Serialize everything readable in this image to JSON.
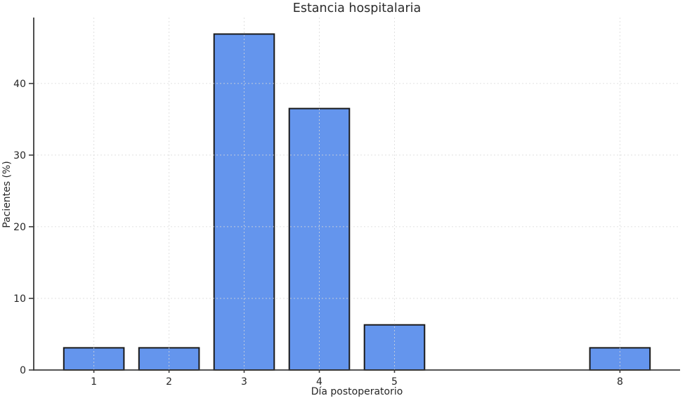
{
  "figure": {
    "title": "Estancia hospitalaria",
    "xlabel": "Día postoperatorio",
    "ylabel": "Pacientes (%)"
  },
  "chart_data": {
    "type": "bar",
    "title": "Estancia hospitalaria",
    "xlabel": "Día postoperatorio",
    "ylabel": "Pacientes (%)",
    "categories": [
      1,
      2,
      3,
      4,
      5,
      8
    ],
    "values": [
      3.1,
      3.1,
      46.9,
      36.5,
      6.3,
      3.1
    ],
    "xtick_labels": [
      "1",
      "2",
      "3",
      "4",
      "5",
      "8"
    ],
    "yticks": [
      0,
      10,
      20,
      30,
      40
    ],
    "ytick_labels": [
      "0",
      "10",
      "20",
      "30",
      "40"
    ],
    "xlim": [
      0.2,
      8.8
    ],
    "ylim": [
      0,
      49.2
    ],
    "bar_width": 0.8,
    "grid": true,
    "grid_style": "dashed",
    "legend": null,
    "colors": {
      "bar_fill": "#6495ED",
      "bar_edge": "#1a1a1a",
      "grid": "#d9d9d9",
      "spine": "#3b3b3b",
      "tick_text": "#262626",
      "title_text": "#2b2b2b",
      "background": "#ffffff"
    }
  }
}
